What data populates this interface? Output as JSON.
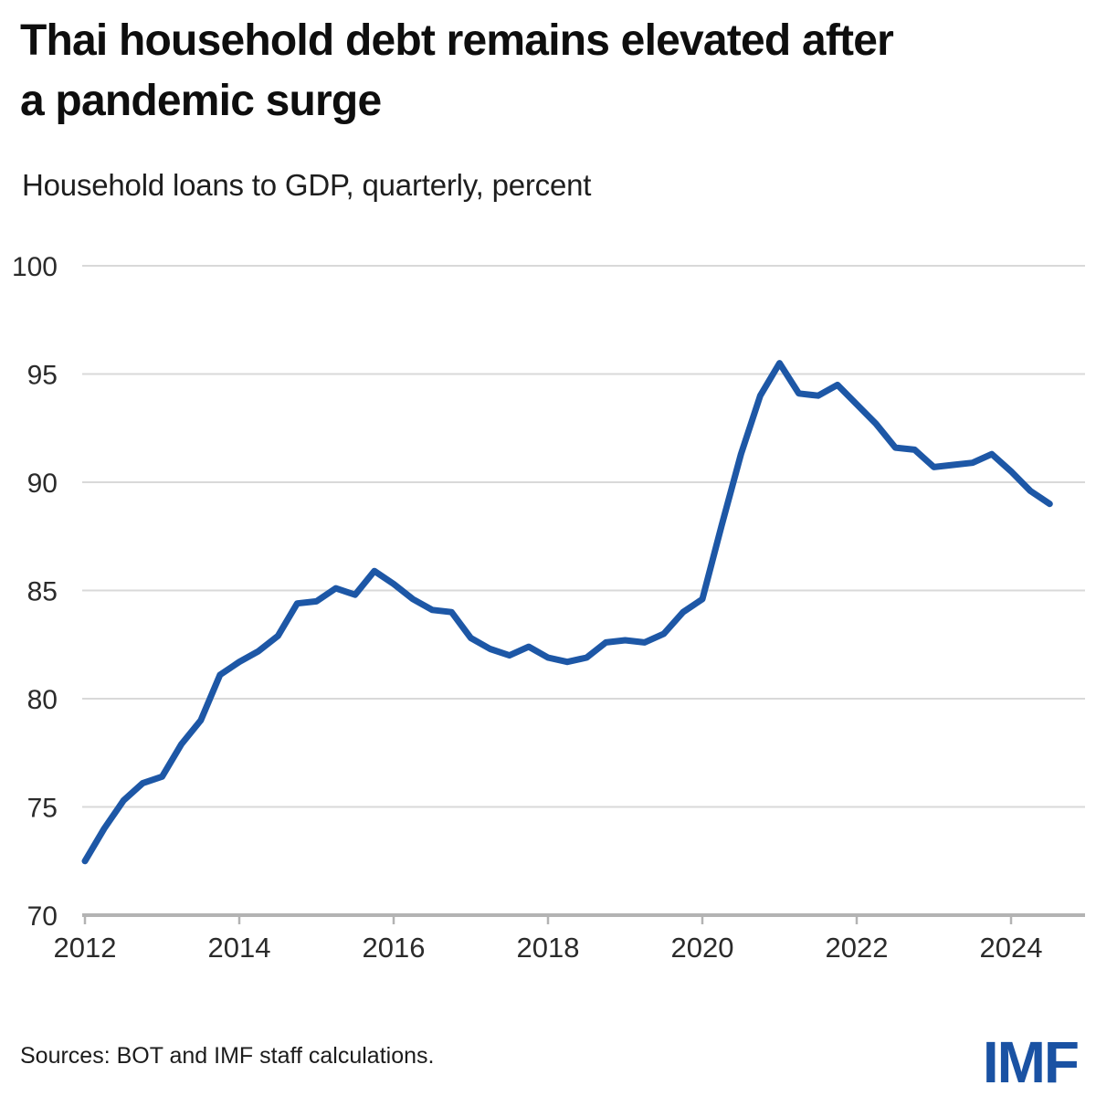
{
  "header": {
    "title_line1": "Thai household debt remains elevated after",
    "title_line2": "a pandemic surge",
    "subtitle": "Household loans to GDP, quarterly, percent"
  },
  "footer": {
    "source": "Sources: BOT and IMF staff calculations.",
    "logo": "IMF"
  },
  "colors": {
    "line": "#1d57a6",
    "logo_blue": "#1a52a3",
    "grid": "#d9d9d9",
    "axis": "#b3b3b3",
    "tick_label": "#2b2b2b",
    "title_text": "#0e0e0e"
  },
  "chart_data": {
    "type": "line",
    "title": "Thai household debt remains elevated after a pandemic surge",
    "subtitle": "Household loans to GDP, quarterly, percent",
    "xlabel": "",
    "ylabel": "Household loans to GDP, quarterly, percent",
    "series_name": "Household loans to GDP (percent of GDP)",
    "x_start": 2012.0,
    "x_step": 0.25,
    "x_unit": "quarterly",
    "values": [
      72.5,
      74.0,
      75.3,
      76.1,
      76.4,
      77.9,
      79.0,
      81.1,
      81.7,
      82.2,
      82.9,
      84.4,
      84.5,
      85.1,
      84.8,
      85.9,
      85.3,
      84.6,
      84.1,
      84.0,
      82.8,
      82.3,
      82.0,
      82.4,
      81.9,
      81.7,
      81.9,
      82.6,
      82.7,
      82.6,
      83.0,
      84.0,
      84.6,
      88.0,
      91.3,
      94.0,
      95.5,
      94.1,
      94.0,
      94.5,
      93.6,
      92.7,
      91.6,
      91.5,
      90.7,
      90.8,
      90.9,
      91.3,
      90.5,
      89.6,
      89.0
    ],
    "yticks": [
      70,
      75,
      80,
      85,
      90,
      95,
      100
    ],
    "xticks": [
      2012,
      2014,
      2016,
      2018,
      2020,
      2022,
      2024
    ],
    "ylim": [
      70,
      100
    ],
    "xlim": [
      2012,
      2025
    ],
    "grid": "horizontal-only",
    "legend": "none"
  }
}
